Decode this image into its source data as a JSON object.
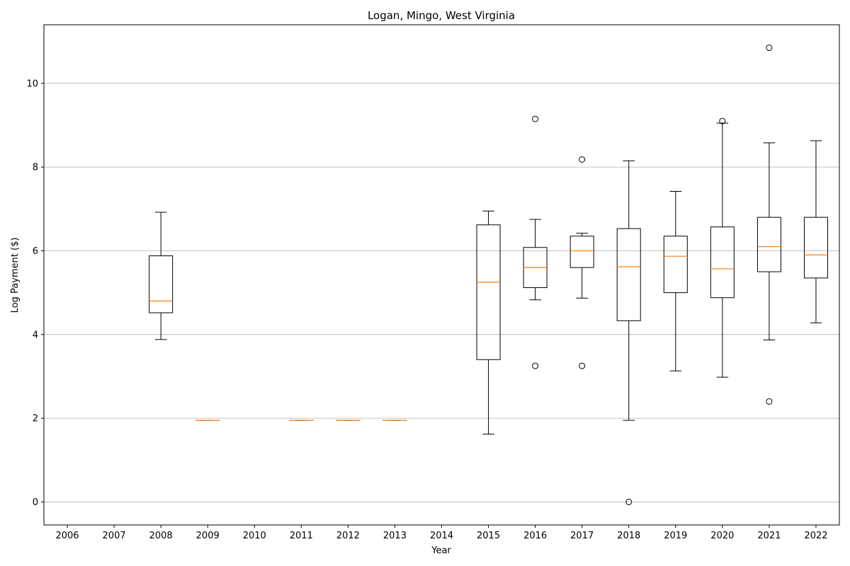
{
  "chart_data": {
    "type": "boxplot",
    "title": "Logan, Mingo, West Virginia",
    "xlabel": "Year",
    "ylabel": "Log Payment ($)",
    "ylim": [
      -0.55,
      11.4
    ],
    "yticks": [
      0,
      2,
      4,
      6,
      8,
      10
    ],
    "grid": "y-major",
    "colors": {
      "box": "#000000",
      "median": "#ff7f0e",
      "grid": "#b0b0b0"
    },
    "categories": [
      "2006",
      "2007",
      "2008",
      "2009",
      "2010",
      "2011",
      "2012",
      "2013",
      "2014",
      "2015",
      "2016",
      "2017",
      "2018",
      "2019",
      "2020",
      "2021",
      "2022"
    ],
    "boxes": [
      {
        "year": "2008",
        "whislo": 3.88,
        "q1": 4.52,
        "med": 4.8,
        "q3": 5.88,
        "whishi": 6.92,
        "fliers": []
      },
      {
        "year": "2009",
        "whislo": 1.95,
        "q1": 1.95,
        "med": 1.95,
        "q3": 1.95,
        "whishi": 1.95,
        "fliers": []
      },
      {
        "year": "2011",
        "whislo": 1.95,
        "q1": 1.95,
        "med": 1.95,
        "q3": 1.95,
        "whishi": 1.95,
        "fliers": []
      },
      {
        "year": "2012",
        "whislo": 1.95,
        "q1": 1.95,
        "med": 1.95,
        "q3": 1.95,
        "whishi": 1.95,
        "fliers": []
      },
      {
        "year": "2013",
        "whislo": 1.95,
        "q1": 1.95,
        "med": 1.95,
        "q3": 1.95,
        "whishi": 1.95,
        "fliers": []
      },
      {
        "year": "2015",
        "whislo": 1.62,
        "q1": 3.4,
        "med": 5.25,
        "q3": 6.62,
        "whishi": 6.95,
        "fliers": []
      },
      {
        "year": "2016",
        "whislo": 4.83,
        "q1": 5.12,
        "med": 5.6,
        "q3": 6.08,
        "whishi": 6.75,
        "fliers": [
          9.15,
          3.25
        ]
      },
      {
        "year": "2017",
        "whislo": 4.87,
        "q1": 5.6,
        "med": 6.0,
        "q3": 6.35,
        "whishi": 6.42,
        "fliers": [
          8.18,
          3.25
        ]
      },
      {
        "year": "2018",
        "whislo": 1.95,
        "q1": 4.33,
        "med": 5.62,
        "q3": 6.53,
        "whishi": 8.15,
        "fliers": [
          0.0
        ]
      },
      {
        "year": "2019",
        "whislo": 3.13,
        "q1": 5.0,
        "med": 5.87,
        "q3": 6.35,
        "whishi": 7.42,
        "fliers": []
      },
      {
        "year": "2020",
        "whislo": 2.98,
        "q1": 4.88,
        "med": 5.57,
        "q3": 6.57,
        "whishi": 9.05,
        "fliers": [
          9.1
        ]
      },
      {
        "year": "2021",
        "whislo": 3.87,
        "q1": 5.5,
        "med": 6.1,
        "q3": 6.8,
        "whishi": 8.58,
        "fliers": [
          10.85,
          2.4
        ]
      },
      {
        "year": "2022",
        "whislo": 4.28,
        "q1": 5.35,
        "med": 5.9,
        "q3": 6.8,
        "whishi": 8.63,
        "fliers": []
      }
    ]
  }
}
